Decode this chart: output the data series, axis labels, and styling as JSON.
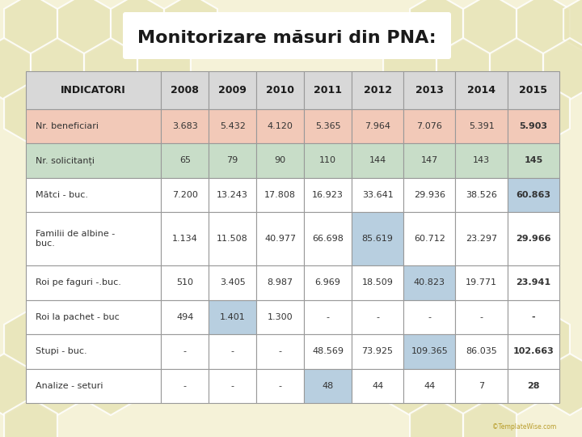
{
  "title": "Monitorizare măsuri din PNA:",
  "title_fontsize": 16,
  "title_fontweight": "bold",
  "bg_color": "#f5f2d8",
  "table_bg": "#ffffff",
  "header_row": [
    "INDICATORI",
    "2008",
    "2009",
    "2010",
    "2011",
    "2012",
    "2013",
    "2014",
    "2015"
  ],
  "rows": [
    [
      "Nr. beneficiari",
      "3.683",
      "5.432",
      "4.120",
      "5.365",
      "7.964",
      "7.076",
      "5.391",
      "5.903"
    ],
    [
      "Nr. solicitanți",
      "65",
      "79",
      "90",
      "110",
      "144",
      "147",
      "143",
      "145"
    ],
    [
      "Mătci - buc.",
      "7.200",
      "13.243",
      "17.808",
      "16.923",
      "33.641",
      "29.936",
      "38.526",
      "60.863"
    ],
    [
      "Familii de albine -\nbuc.",
      "1.134",
      "11.508",
      "40.977",
      "66.698",
      "85.619",
      "60.712",
      "23.297",
      "29.966"
    ],
    [
      "Roi pe faguri -.buc.",
      "510",
      "3.405",
      "8.987",
      "6.969",
      "18.509",
      "40.823",
      "19.771",
      "23.941"
    ],
    [
      "Roi la pachet - buc",
      "494",
      "1.401",
      "1.300",
      "-",
      "-",
      "-",
      "-",
      "-"
    ],
    [
      "Stupi - buc.",
      "-",
      "-",
      "-",
      "48.569",
      "73.925",
      "109.365",
      "86.035",
      "102.663"
    ],
    [
      "Analize - seturi",
      "-",
      "-",
      "-",
      "48",
      "44",
      "44",
      "7",
      "28"
    ]
  ],
  "row_colors": [
    [
      "#f2c9b8",
      "#f2c9b8",
      "#f2c9b8",
      "#f2c9b8",
      "#f2c9b8",
      "#f2c9b8",
      "#f2c9b8",
      "#f2c9b8",
      "#f2c9b8"
    ],
    [
      "#c8ddc8",
      "#c8ddc8",
      "#c8ddc8",
      "#c8ddc8",
      "#c8ddc8",
      "#c8ddc8",
      "#c8ddc8",
      "#c8ddc8",
      "#c8ddc8"
    ],
    [
      "#ffffff",
      "#ffffff",
      "#ffffff",
      "#ffffff",
      "#ffffff",
      "#ffffff",
      "#ffffff",
      "#ffffff",
      "#b8cfe0"
    ],
    [
      "#ffffff",
      "#ffffff",
      "#ffffff",
      "#ffffff",
      "#ffffff",
      "#b8cfe0",
      "#ffffff",
      "#ffffff",
      "#ffffff"
    ],
    [
      "#ffffff",
      "#ffffff",
      "#ffffff",
      "#ffffff",
      "#ffffff",
      "#ffffff",
      "#b8cfe0",
      "#ffffff",
      "#ffffff"
    ],
    [
      "#ffffff",
      "#ffffff",
      "#b8cfe0",
      "#ffffff",
      "#ffffff",
      "#ffffff",
      "#ffffff",
      "#ffffff",
      "#ffffff"
    ],
    [
      "#ffffff",
      "#ffffff",
      "#ffffff",
      "#ffffff",
      "#ffffff",
      "#ffffff",
      "#b8cfe0",
      "#ffffff",
      "#ffffff"
    ],
    [
      "#ffffff",
      "#ffffff",
      "#ffffff",
      "#ffffff",
      "#b8cfe0",
      "#ffffff",
      "#ffffff",
      "#ffffff",
      "#ffffff"
    ]
  ],
  "last_col_bold": true,
  "header_color": "#d8d8d8",
  "header_text_color": "#1a1a1a",
  "border_color": "#999999",
  "font_color": "#333333",
  "honeycomb_color": "#e8e4b8",
  "honeycomb_light": "#f0edd0",
  "watermark": "©TemplateWise.com"
}
